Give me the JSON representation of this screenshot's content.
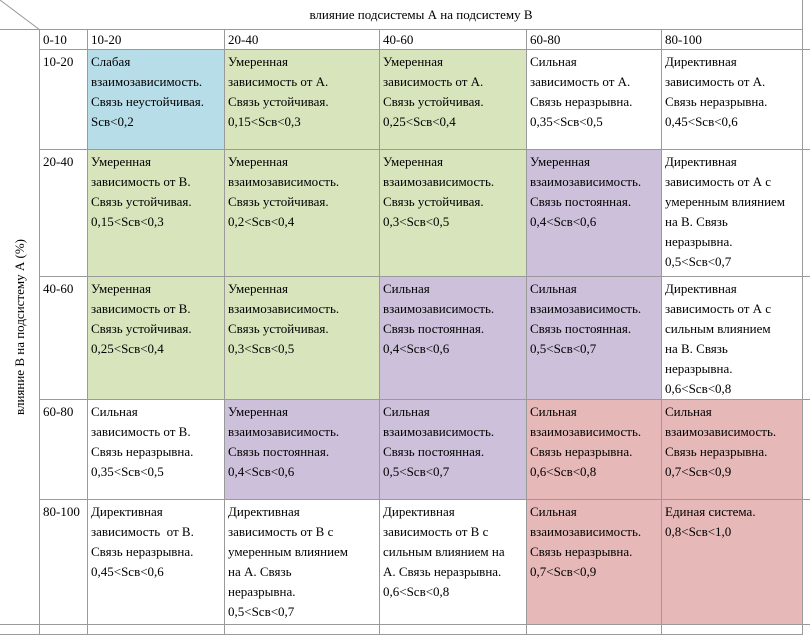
{
  "header": {
    "title": "влияние подсистемы А на подсистему В",
    "side_label": "влияние В на подсистему А (%)"
  },
  "table": {
    "columns": [
      "0-10",
      "10-20",
      "20-40",
      "40-60",
      "60-80",
      "80-100"
    ],
    "rows": [
      {
        "label": "10-20",
        "cells": [
          {
            "lines": [
              "Слабая",
              "взаимозависимость.",
              "Связь неустойчивая.",
              "Sсв<0,2"
            ]
          },
          {
            "lines": [
              "Умеренная",
              "зависимость от А.",
              "Связь устойчивая.",
              "0,15<Sсв<0,3"
            ]
          },
          {
            "lines": [
              "Умеренная",
              "зависимость от А.",
              "Связь устойчивая.",
              "0,25<Sсв<0,4"
            ]
          },
          {
            "lines": [
              "Сильная",
              "зависимость от А.",
              "Связь неразрывна.",
              "0,35<Sсв<0,5"
            ]
          },
          {
            "lines": [
              "Директивная",
              "зависимость от А.",
              "Связь неразрывна.",
              "0,45<Sсв<0,6"
            ]
          }
        ]
      },
      {
        "label": "20-40",
        "cells": [
          {
            "lines": [
              "Умеренная",
              "зависимость от В.",
              "Связь устойчивая.",
              "0,15<Sсв<0,3"
            ]
          },
          {
            "lines": [
              "Умеренная",
              "взаимозависимость.",
              "Связь устойчивая.",
              "0,2<Sсв<0,4"
            ]
          },
          {
            "lines": [
              "Умеренная",
              "взаимозависимость.",
              "Связь устойчивая.",
              "0,3<Sсв<0,5"
            ]
          },
          {
            "lines": [
              "Умеренная",
              "взаимозависимость.",
              "Связь постоянная.",
              "0,4<Sсв<0,6"
            ]
          },
          {
            "lines": [
              "Директивная",
              "зависимость от А с",
              "умеренным влиянием",
              "на В. Связь",
              "неразрывна.",
              "0,5<Sсв<0,7"
            ]
          }
        ]
      },
      {
        "label": "40-60",
        "cells": [
          {
            "lines": [
              "Умеренная",
              "зависимость от В.",
              "Связь устойчивая.",
              "0,25<Sсв<0,4"
            ]
          },
          {
            "lines": [
              "Умеренная",
              "взаимозависимость.",
              "Связь устойчивая.",
              "0,3<Sсв<0,5"
            ]
          },
          {
            "lines": [
              "Сильная",
              "взаимозависимость.",
              "Связь постоянная.",
              "0,4<Sсв<0,6"
            ]
          },
          {
            "lines": [
              "Сильная",
              "взаимозависимость.",
              "Связь постоянная.",
              "0,5<Sсв<0,7"
            ]
          },
          {
            "lines": [
              "Директивная",
              "зависимость от А с",
              "сильным влиянием",
              "на В. Связь",
              "неразрывна.",
              "0,6<Sсв<0,8"
            ]
          }
        ]
      },
      {
        "label": "60-80",
        "cells": [
          {
            "lines": [
              "Сильная",
              "зависимость от В.",
              "Связь неразрывна.",
              "0,35<Sсв<0,5"
            ]
          },
          {
            "lines": [
              "Умеренная",
              "взаимозависимость.",
              "Связь постоянная.",
              "0,4<Sсв<0,6"
            ]
          },
          {
            "lines": [
              "Сильная",
              "взаимозависимость.",
              "Связь постоянная.",
              "0,5<Sсв<0,7"
            ]
          },
          {
            "lines": [
              "Сильная",
              "взаимозависимость.",
              "Связь неразрывна.",
              "0,6<Sсв<0,8"
            ]
          },
          {
            "lines": [
              "Сильная",
              "взаимозависимость.",
              "Связь неразрывна.",
              "0,7<Sсв<0,9"
            ]
          }
        ]
      },
      {
        "label": "80-100",
        "cells": [
          {
            "lines": [
              "Директивная",
              "зависимость  от В.",
              "Связь неразрывна.",
              "0,45<Sсв<0,6"
            ]
          },
          {
            "lines": [
              "Директивная",
              "зависимость от В с",
              "умеренным влиянием",
              "на А. Связь",
              "неразрывна.",
              "0,5<Sсв<0,7"
            ]
          },
          {
            "lines": [
              "Директивная",
              "зависимость от В с",
              "сильным влиянием на",
              "А. Связь неразрывна.",
              "0,6<Sсв<0,8"
            ]
          },
          {
            "lines": [
              "Сильная",
              "взаимозависимость.",
              "Связь неразрывна.",
              "0,7<Sсв<0,9"
            ]
          },
          {
            "lines": [
              "Единая система.",
              "0,8<Sсв<1,0"
            ]
          }
        ]
      }
    ]
  }
}
